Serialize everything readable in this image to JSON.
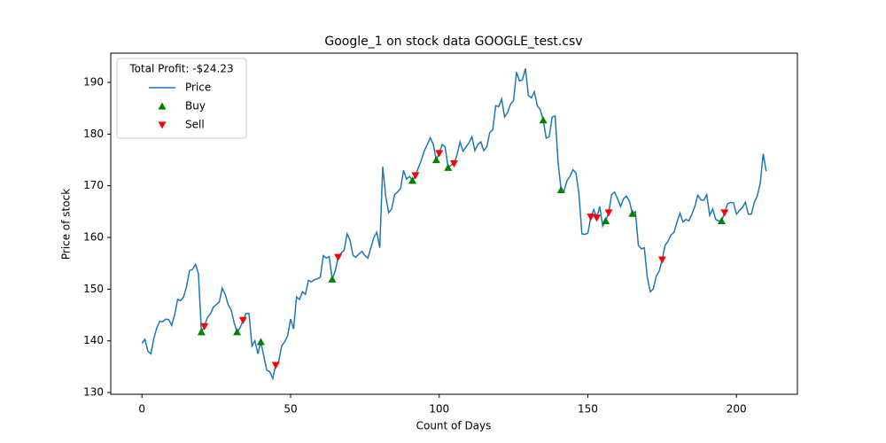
{
  "chart_data": {
    "type": "line",
    "title": "Google_1 on stock data GOOGLE_test.csv",
    "xlabel": "Count of Days",
    "ylabel": "Price of stock",
    "legend_title": "Total Profit: -$24.23",
    "legend": "upper left",
    "xlim": [
      -10.5,
      220.5
    ],
    "xticks": [
      0,
      50,
      100,
      150,
      200
    ],
    "ylim": [
      129.66,
      195.66
    ],
    "yticks": [
      130,
      140,
      150,
      160,
      170,
      180,
      190
    ],
    "series": [
      {
        "name": "Price",
        "color": "#1f77b4",
        "marker": "line",
        "x": [
          0,
          1,
          2,
          3,
          4,
          5,
          6,
          7,
          8,
          9,
          10,
          11,
          12,
          13,
          14,
          15,
          16,
          17,
          18,
          19,
          20,
          21,
          22,
          23,
          24,
          25,
          26,
          27,
          28,
          29,
          30,
          31,
          32,
          33,
          34,
          35,
          36,
          37,
          38,
          39,
          40,
          41,
          42,
          43,
          44,
          45,
          46,
          47,
          48,
          49,
          50,
          51,
          52,
          53,
          54,
          55,
          56,
          57,
          58,
          59,
          60,
          61,
          62,
          63,
          64,
          65,
          66,
          67,
          68,
          69,
          70,
          71,
          72,
          73,
          74,
          75,
          76,
          77,
          78,
          79,
          80,
          81,
          82,
          83,
          84,
          85,
          86,
          87,
          88,
          89,
          90,
          91,
          92,
          93,
          94,
          95,
          96,
          97,
          98,
          99,
          100,
          101,
          102,
          103,
          104,
          105,
          106,
          107,
          108,
          109,
          110,
          111,
          112,
          113,
          114,
          115,
          116,
          117,
          118,
          119,
          120,
          121,
          122,
          123,
          124,
          125,
          126,
          127,
          128,
          129,
          130,
          131,
          132,
          133,
          134,
          135,
          136,
          137,
          138,
          139,
          140,
          141,
          142,
          143,
          144,
          145,
          146,
          147,
          148,
          149,
          150,
          151,
          152,
          153,
          154,
          155,
          156,
          157,
          158,
          159,
          160,
          161,
          162,
          163,
          164,
          165,
          166,
          167,
          168,
          169,
          170,
          171,
          172,
          173,
          174,
          175,
          176,
          177,
          178,
          179,
          180,
          181,
          182,
          183,
          184,
          185,
          186,
          187,
          188,
          189,
          190,
          191,
          192,
          193,
          194,
          195,
          196,
          197,
          198,
          199,
          200,
          201,
          202,
          203,
          204,
          205,
          206,
          207,
          208,
          209,
          210
        ],
        "values": [
          139.5,
          140.3,
          138,
          137.5,
          140.5,
          142.5,
          143.8,
          143.7,
          144.2,
          144.1,
          143,
          145,
          148,
          147.8,
          148.5,
          150.5,
          153.6,
          153.8,
          154.8,
          153,
          141.7,
          142.8,
          144.5,
          145.2,
          146.5,
          147,
          147.5,
          150.2,
          149,
          147,
          146,
          143.5,
          141.7,
          142.5,
          144,
          145.3,
          145.3,
          139,
          140,
          137.5,
          139.8,
          137,
          134.3,
          134,
          132.7,
          135.3,
          136,
          139,
          139.8,
          141,
          144.2,
          142.3,
          148.5,
          148,
          149.5,
          149,
          151.7,
          151.4,
          151.8,
          152,
          152.3,
          156.5,
          156,
          156.3,
          151.9,
          153.5,
          156.2,
          157,
          157.5,
          160.7,
          159.5,
          156.5,
          156.2,
          156.8,
          157.3,
          156.5,
          156,
          158,
          160,
          161,
          158,
          173.7,
          168,
          164.8,
          165.5,
          168.3,
          168.8,
          169.5,
          173,
          171.3,
          171.8,
          171,
          172,
          173.5,
          175,
          176.8,
          178,
          179.3,
          178,
          175,
          176.3,
          178,
          177.5,
          173.5,
          174,
          174.3,
          176,
          178.5,
          176.7,
          177.5,
          178.3,
          179.5,
          176.8,
          178,
          178.5,
          176.8,
          177.5,
          180.3,
          180.8,
          185.5,
          185.3,
          186.8,
          183.3,
          184.2,
          185.8,
          186.5,
          192,
          190.3,
          190.5,
          192.7,
          187.5,
          187,
          188.2,
          185.5,
          184.7,
          182.7,
          179.2,
          179.5,
          183.3,
          183.5,
          174.5,
          169.2,
          169,
          171,
          171.8,
          173.1,
          172.5,
          168.5,
          160.7,
          160.6,
          160.8,
          164,
          165.4,
          163.8,
          166,
          162.2,
          163.2,
          164.8,
          168.3,
          168.8,
          167.5,
          166,
          167.5,
          168,
          167,
          164.6,
          165,
          158.5,
          157.8,
          158,
          152.3,
          149.5,
          150,
          152.5,
          153.5,
          155.7,
          158.5,
          159.3,
          160.5,
          161,
          163,
          164.7,
          163,
          163.5,
          163.2,
          164.5,
          166,
          168.2,
          167.3,
          167.2,
          168.3,
          164.3,
          165.5,
          163.5,
          163.2,
          163.2,
          164.8,
          166.5,
          166.8,
          166.7,
          164.5,
          165.2,
          165.8,
          166.8,
          164.5,
          164.5,
          166.8,
          168,
          170.5,
          176.2,
          172.8
        ]
      },
      {
        "name": "Buy",
        "color": "#008000",
        "marker": "triangle-up",
        "x": [
          20,
          32,
          40,
          64,
          91,
          99,
          103,
          135,
          141,
          156,
          165,
          195
        ],
        "values": [
          141.7,
          141.7,
          139.8,
          151.9,
          171,
          175,
          173.5,
          182.7,
          169.2,
          163.2,
          164.6,
          163.2
        ]
      },
      {
        "name": "Sell",
        "color": "#ff0000",
        "marker": "triangle-down",
        "x": [
          21,
          34,
          45,
          66,
          92,
          100,
          105,
          151,
          153,
          157,
          175,
          196
        ],
        "values": [
          142.8,
          144,
          135.3,
          156.2,
          172,
          176.3,
          174.3,
          164,
          163.8,
          164.8,
          155.7,
          164.8
        ]
      }
    ]
  }
}
